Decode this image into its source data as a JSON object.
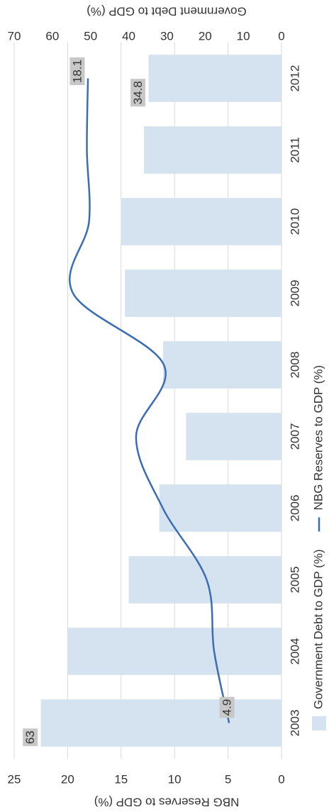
{
  "chart_data": {
    "type": "bar",
    "categories": [
      "2003",
      "2004",
      "2005",
      "2006",
      "2007",
      "2008",
      "2009",
      "2010",
      "2011",
      "2012"
    ],
    "series": [
      {
        "name": "Government Debt to GDP (%)",
        "type": "bar",
        "axis": "y2",
        "color": "#d5e2f0",
        "values": [
          63,
          56,
          40,
          32,
          25,
          31,
          41,
          42,
          36,
          34.8
        ]
      },
      {
        "name": "NBG Reserves to GDP (%)",
        "type": "line",
        "color": "#3b6db5",
        "values": [
          4.9,
          6.3,
          7.0,
          11.1,
          13.6,
          11.0,
          19.5,
          18.0,
          18.2,
          18.1
        ]
      }
    ],
    "ylabel": "NBG Reserves to GDP (%)",
    "y2label": "Government Debt to GDP (%)",
    "ylim": [
      0,
      25
    ],
    "yticks": [
      0,
      5,
      10,
      15,
      20,
      25
    ],
    "y2lim": [
      0,
      70
    ],
    "y2ticks": [
      0,
      10,
      20,
      30,
      40,
      50,
      60,
      70
    ],
    "grid": true,
    "legend": "bottom"
  }
}
